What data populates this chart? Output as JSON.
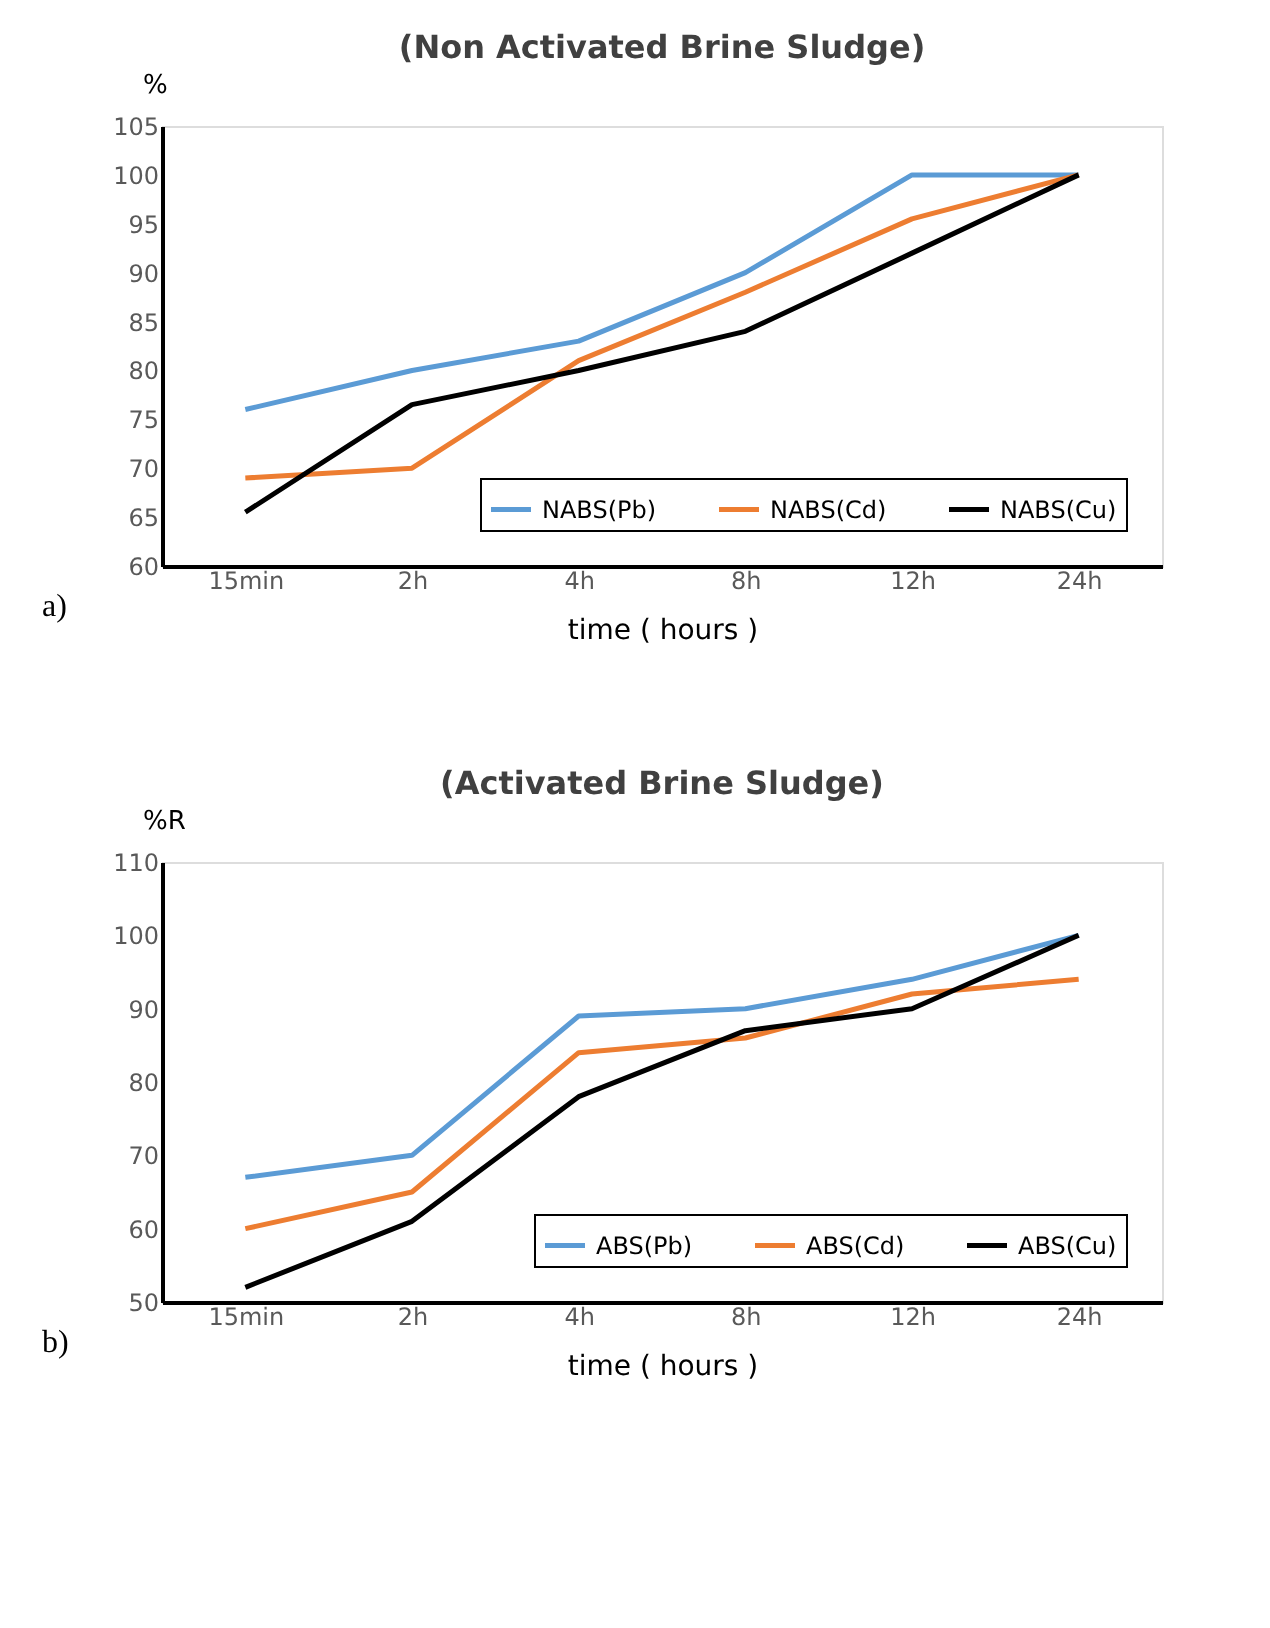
{
  "chart_data": [
    {
      "type": "line",
      "title": "(Non Activated Brine Sludge)",
      "xlabel": "time ( hours )",
      "ylabel": "%",
      "categories": [
        "15min",
        "2h",
        "4h",
        "8h",
        "12h",
        "24h"
      ],
      "series": [
        {
          "name": "NABS(Pb)",
          "color": "#5b9bd5",
          "values": [
            76,
            80,
            83,
            90,
            100,
            100
          ]
        },
        {
          "name": "NABS(Cd)",
          "color": "#ed7d31",
          "values": [
            69,
            70,
            81,
            88,
            95.5,
            100
          ]
        },
        {
          "name": "NABS(Cu)",
          "color": "#000000",
          "values": [
            65.5,
            76.5,
            80,
            84,
            92,
            100
          ]
        }
      ],
      "ylim": [
        60,
        105
      ],
      "yticks": [
        60,
        65,
        70,
        75,
        80,
        85,
        90,
        95,
        100,
        105
      ],
      "grid": false,
      "legend": "bottom right",
      "marker": "none",
      "line_style": "solid",
      "annotations": [
        "a)"
      ]
    },
    {
      "type": "line",
      "title": "(Activated Brine Sludge)",
      "xlabel": "time ( hours )",
      "ylabel": "%R",
      "categories": [
        "15min",
        "2h",
        "4h",
        "8h",
        "12h",
        "24h"
      ],
      "series": [
        {
          "name": "ABS(Pb)",
          "color": "#5b9bd5",
          "values": [
            67,
            70,
            89,
            90,
            94,
            100
          ]
        },
        {
          "name": "ABS(Cd)",
          "color": "#ed7d31",
          "values": [
            60,
            65,
            84,
            86,
            92,
            94
          ]
        },
        {
          "name": "ABS(Cu)",
          "color": "#000000",
          "values": [
            52,
            61,
            78,
            87,
            90,
            100
          ]
        }
      ],
      "ylim": [
        50,
        110
      ],
      "yticks": [
        50,
        60,
        70,
        80,
        90,
        100,
        110
      ],
      "grid": false,
      "legend": "bottom right",
      "marker": "none",
      "line_style": "solid",
      "annotations": [
        "b)"
      ]
    }
  ]
}
